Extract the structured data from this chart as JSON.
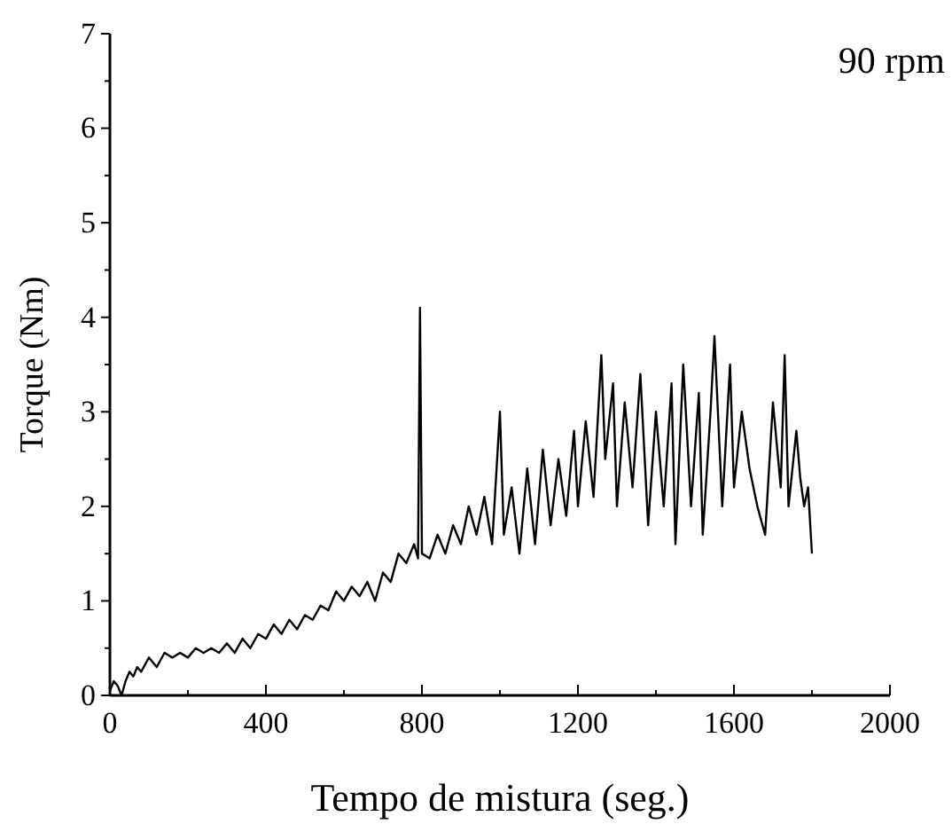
{
  "chart_data": {
    "type": "line",
    "xlabel": "Tempo de mistura (seg.)",
    "ylabel": "Torque (Nm)",
    "annotations": [
      "90 rpm"
    ],
    "xlim": [
      0,
      2000
    ],
    "xticks": [
      0,
      400,
      800,
      1200,
      1600,
      2000
    ],
    "ylim": [
      0,
      7
    ],
    "yticks": [
      0,
      1,
      2,
      3,
      4,
      5,
      6,
      7
    ],
    "grid": false,
    "marker": "none",
    "line_style": "solid",
    "series": [
      {
        "color": "#000000",
        "x": [
          0,
          10,
          20,
          30,
          40,
          50,
          60,
          70,
          80,
          100,
          120,
          140,
          160,
          180,
          200,
          220,
          240,
          260,
          280,
          300,
          320,
          340,
          360,
          380,
          400,
          420,
          440,
          460,
          480,
          500,
          520,
          540,
          560,
          580,
          600,
          620,
          640,
          660,
          680,
          700,
          720,
          740,
          760,
          780,
          790,
          795,
          800,
          820,
          840,
          860,
          880,
          900,
          920,
          940,
          960,
          980,
          1000,
          1010,
          1030,
          1050,
          1070,
          1090,
          1110,
          1130,
          1150,
          1170,
          1190,
          1200,
          1220,
          1240,
          1260,
          1270,
          1290,
          1300,
          1320,
          1340,
          1360,
          1380,
          1400,
          1420,
          1440,
          1450,
          1470,
          1490,
          1510,
          1520,
          1540,
          1550,
          1570,
          1590,
          1600,
          1620,
          1640,
          1660,
          1680,
          1700,
          1720,
          1730,
          1740,
          1760,
          1770,
          1780,
          1790,
          1800
        ],
        "values": [
          0.05,
          0.15,
          0.1,
          0.0,
          0.15,
          0.25,
          0.2,
          0.3,
          0.25,
          0.4,
          0.3,
          0.45,
          0.4,
          0.45,
          0.4,
          0.5,
          0.45,
          0.5,
          0.45,
          0.55,
          0.45,
          0.6,
          0.5,
          0.65,
          0.6,
          0.75,
          0.65,
          0.8,
          0.7,
          0.85,
          0.8,
          0.95,
          0.9,
          1.1,
          1.0,
          1.15,
          1.05,
          1.2,
          1.0,
          1.3,
          1.2,
          1.5,
          1.4,
          1.6,
          1.45,
          4.1,
          1.5,
          1.45,
          1.7,
          1.5,
          1.8,
          1.6,
          2.0,
          1.7,
          2.1,
          1.6,
          3.0,
          1.7,
          2.2,
          1.5,
          2.4,
          1.6,
          2.6,
          1.8,
          2.5,
          1.9,
          2.8,
          2.0,
          2.9,
          2.1,
          3.6,
          2.5,
          3.3,
          2.0,
          3.1,
          2.2,
          3.4,
          1.8,
          3.0,
          2.0,
          3.3,
          1.6,
          3.5,
          2.0,
          3.2,
          1.7,
          3.0,
          3.8,
          2.0,
          3.5,
          2.2,
          3.0,
          2.4,
          2.0,
          1.7,
          3.1,
          2.2,
          3.6,
          2.0,
          2.8,
          2.3,
          2.0,
          2.2,
          1.5
        ]
      }
    ]
  }
}
